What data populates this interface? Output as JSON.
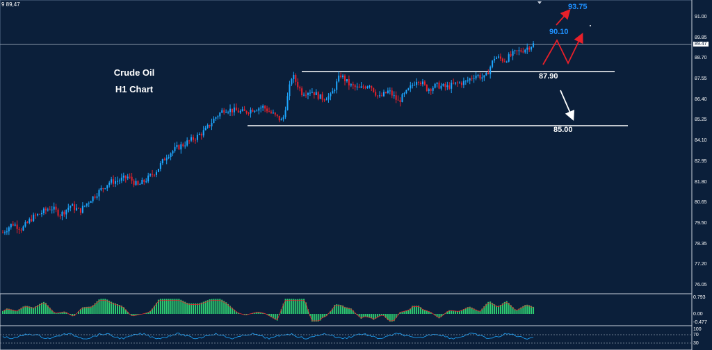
{
  "window": {
    "ticker": "9 89,47"
  },
  "chart_data": {
    "type": "candlestick",
    "title": "Crude Oil",
    "subtitle": "H1 Chart",
    "ylim": [
      75.5,
      92.1
    ],
    "y_ticks": [
      "91.00",
      "89.85",
      "88.70",
      "87.55",
      "86.40",
      "85.25",
      "84.10",
      "82.95",
      "81.80",
      "80.65",
      "79.50",
      "78.35",
      "77.20",
      "76.05"
    ],
    "current_price": "89.47",
    "levels": {
      "resistance": {
        "value": 87.9,
        "label": "87.90"
      },
      "support": {
        "value": 85.0,
        "label": "85.00"
      },
      "target_1": {
        "label": "90.10"
      },
      "target_2": {
        "label": "93.75"
      }
    },
    "price_path": [
      79.0,
      79.5,
      79.2,
      79.8,
      80.1,
      80.4,
      80.0,
      80.5,
      80.2,
      80.8,
      81.3,
      81.8,
      81.9,
      82.1,
      81.6,
      82.0,
      82.5,
      83.3,
      83.7,
      84.0,
      84.3,
      84.7,
      85.4,
      85.9,
      85.8,
      85.7,
      85.9,
      86.0,
      85.6,
      85.2,
      87.8,
      86.8,
      86.9,
      86.5,
      86.6,
      87.8,
      87.2,
      87.0,
      87.3,
      86.5,
      86.9,
      86.3,
      86.9,
      87.6,
      87.0,
      87.2,
      87.1,
      87.3,
      87.4,
      87.8,
      87.6,
      88.8,
      88.6,
      89.0,
      89.2,
      89.5
    ],
    "macd": {
      "ylim": [
        -0.477,
        0.793
      ],
      "ticks": [
        "0.793",
        "0.00",
        "-0.477"
      ]
    },
    "rsi": {
      "ticks": [
        "100",
        "70",
        "30"
      ]
    }
  }
}
